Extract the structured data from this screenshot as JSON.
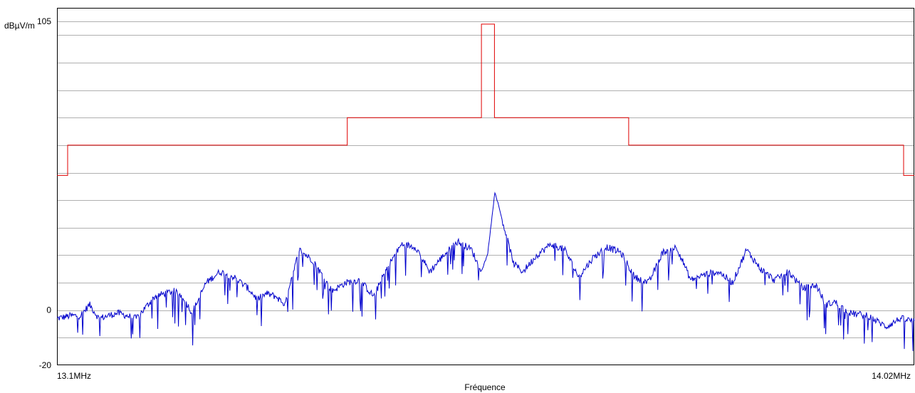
{
  "chart_data": {
    "type": "line",
    "title": "",
    "ylabel": "dBµV/m",
    "xlabel": "Fréquence",
    "xlim": [
      13.1,
      14.02
    ],
    "ylim": [
      -20,
      105
    ],
    "x_unit": "MHz",
    "grid": true,
    "y_tick_labels": [
      {
        "value": 105,
        "label": "105"
      },
      {
        "value": 0,
        "label": "0"
      },
      {
        "value": -20,
        "label": "-20"
      }
    ],
    "x_tick_labels": [
      {
        "value": 13.1,
        "label": "13.1MHz"
      },
      {
        "value": 14.02,
        "label": "14.02MHz"
      }
    ],
    "series": [
      {
        "color": "#e00000",
        "step": true,
        "x": [
          13.1,
          13.1115,
          13.1115,
          13.4115,
          13.4115,
          13.5555,
          13.5555,
          13.5695,
          13.5695,
          13.7135,
          13.7135,
          14.0085,
          14.0085,
          14.02
        ],
        "y": [
          49,
          49,
          60,
          60,
          70,
          70,
          104,
          104,
          70,
          70,
          60,
          60,
          49,
          49
        ]
      },
      {
        "color": "#0000cc",
        "x": [
          13.1,
          13.115,
          13.125,
          13.135,
          13.145,
          13.165,
          13.185,
          13.205,
          13.225,
          13.235,
          13.245,
          13.26,
          13.275,
          13.29,
          13.305,
          13.315,
          13.325,
          13.335,
          13.345,
          13.36,
          13.375,
          13.395,
          13.41,
          13.425,
          13.44,
          13.455,
          13.47,
          13.485,
          13.5,
          13.515,
          13.53,
          13.545,
          13.555,
          13.562,
          13.57,
          13.58,
          13.59,
          13.6,
          13.615,
          13.63,
          13.645,
          13.66,
          13.675,
          13.69,
          13.705,
          13.72,
          13.735,
          13.75,
          13.765,
          13.78,
          13.795,
          13.81,
          13.825,
          13.84,
          13.855,
          13.87,
          13.885,
          13.9,
          13.915,
          13.925,
          13.935,
          13.95,
          13.97,
          13.99,
          14.005,
          14.02
        ],
        "y": [
          -3,
          -2,
          -2,
          2,
          -3,
          -1,
          -3,
          5,
          7,
          5,
          -1,
          10,
          14,
          12,
          8,
          4,
          6,
          5,
          2,
          22,
          18,
          7,
          10,
          11,
          5,
          16,
          24,
          23,
          14,
          20,
          25,
          22,
          14,
          20,
          43,
          30,
          17,
          14,
          20,
          24,
          22,
          12,
          19,
          23,
          21,
          12,
          10,
          21,
          23,
          11,
          13,
          14,
          10,
          22,
          15,
          11,
          14,
          8,
          9,
          2,
          3,
          -1,
          -2,
          -6,
          -3,
          -4
        ]
      }
    ]
  }
}
